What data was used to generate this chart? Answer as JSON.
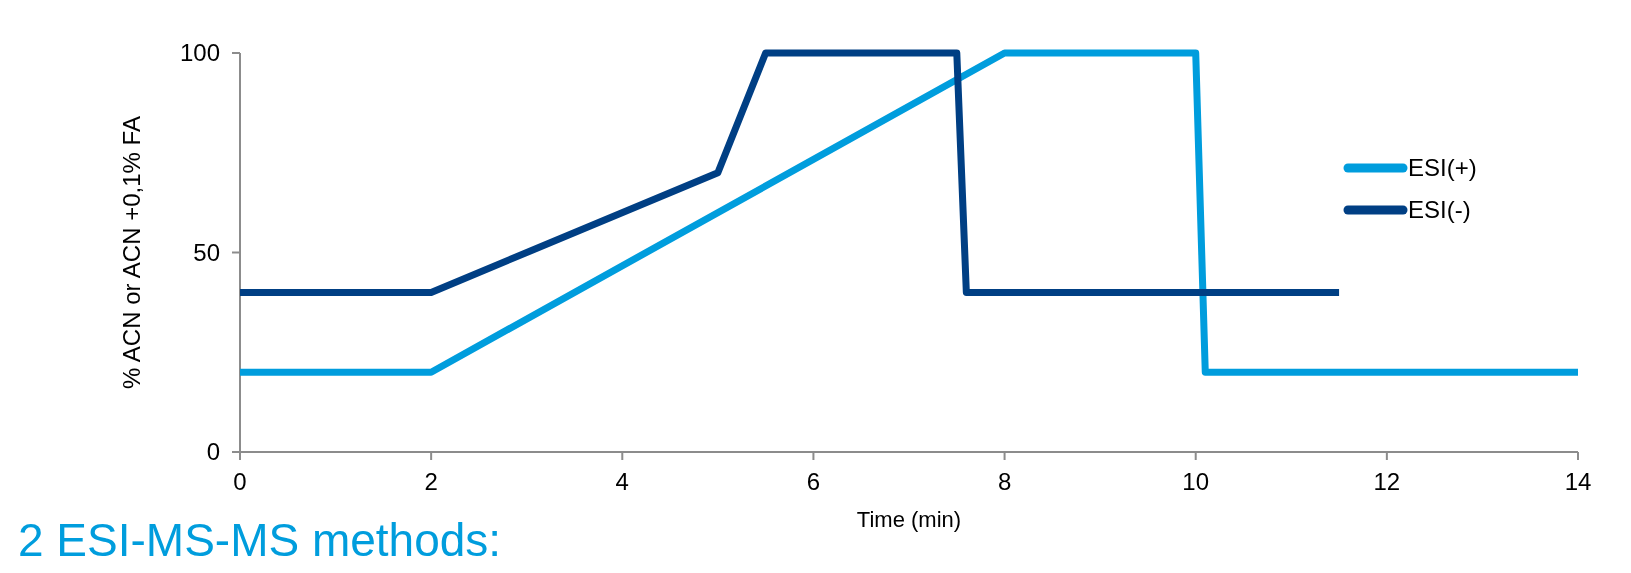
{
  "chart_data": {
    "type": "line",
    "xlabel": "Time (min)",
    "ylabel": "% ACN or ACN +0,1% FA",
    "annotations": [
      "2 ESI-MS-MS methods:"
    ],
    "xlim": [
      0,
      14
    ],
    "xticks": [
      0,
      2,
      4,
      6,
      8,
      10,
      12,
      14
    ],
    "ylim": [
      0,
      100
    ],
    "yticks": [
      0,
      50,
      100
    ],
    "legend": "right",
    "grid": false,
    "line_style": "solid",
    "series": [
      {
        "name": "ESI(+)",
        "color": "#009ddd",
        "x": [
          0,
          2,
          8,
          10,
          10.1,
          14
        ],
        "values": [
          20,
          20,
          100,
          100,
          20,
          20
        ]
      },
      {
        "name": "ESI(-)",
        "color": "#003f84",
        "x": [
          0,
          2,
          5,
          5.5,
          7.5,
          7.6,
          11.5
        ],
        "values": [
          40,
          40,
          70,
          100,
          100,
          40,
          40
        ]
      }
    ]
  }
}
